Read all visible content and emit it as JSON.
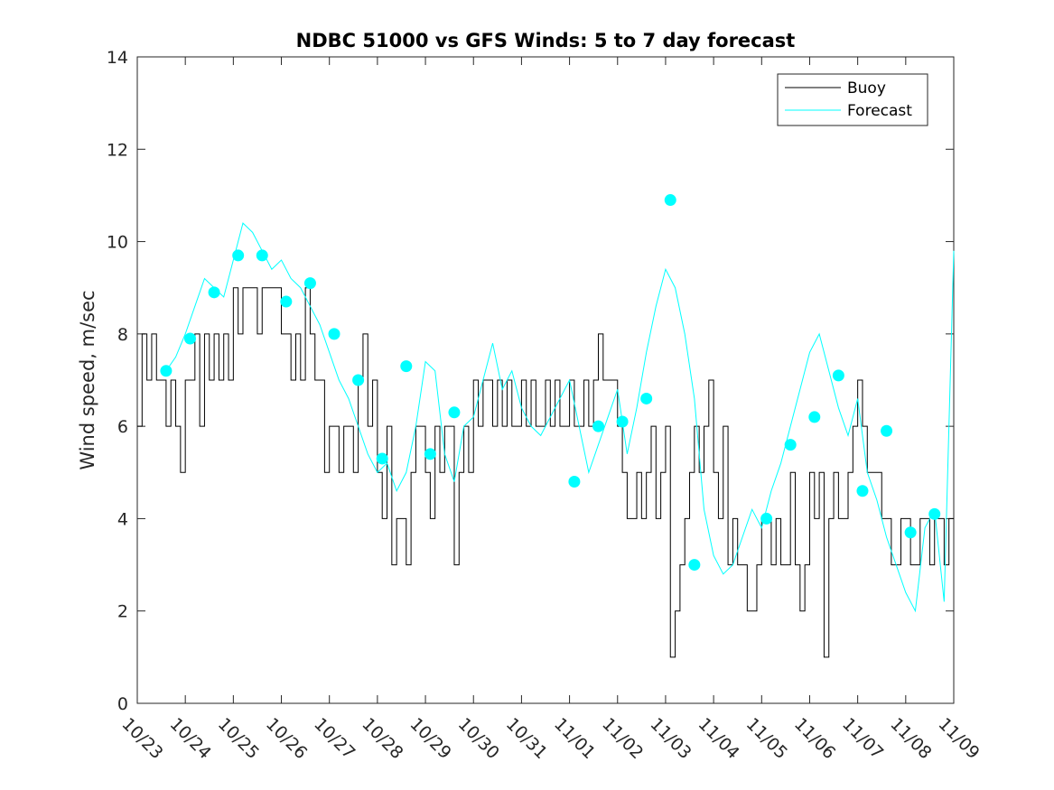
{
  "chart_data": {
    "type": "line",
    "title": "NDBC 51000 vs GFS Winds: 5 to 7 day forecast",
    "xlabel": "",
    "ylabel": "Wind speed, m/sec",
    "x_tick_labels": [
      "10/23",
      "10/24",
      "10/25",
      "10/26",
      "10/27",
      "10/28",
      "10/29",
      "10/30",
      "10/31",
      "11/01",
      "11/02",
      "11/03",
      "11/04",
      "11/05",
      "11/06",
      "11/07",
      "11/08",
      "11/09"
    ],
    "xlim": [
      0,
      17
    ],
    "ylim": [
      0,
      14
    ],
    "y_ticks": [
      0,
      2,
      4,
      6,
      8,
      10,
      12,
      14
    ],
    "legend": {
      "position": "top-right",
      "entries": [
        {
          "label": "Buoy",
          "color": "#000000"
        },
        {
          "label": "Forecast",
          "color": "#00ffff"
        }
      ]
    },
    "colors": {
      "buoy": "#000000",
      "forecast": "#00ffff",
      "axis": "#262626"
    },
    "series": [
      {
        "name": "Buoy",
        "color": "#000000",
        "x": [
          0,
          0.1,
          0.2,
          0.3,
          0.4,
          0.5,
          0.6,
          0.7,
          0.8,
          0.9,
          1.0,
          1.1,
          1.2,
          1.3,
          1.4,
          1.5,
          1.6,
          1.7,
          1.8,
          1.9,
          2.0,
          2.1,
          2.2,
          2.3,
          2.4,
          2.5,
          2.6,
          2.7,
          2.8,
          2.9,
          3.0,
          3.1,
          3.2,
          3.3,
          3.4,
          3.5,
          3.6,
          3.7,
          3.8,
          3.9,
          4.0,
          4.1,
          4.2,
          4.3,
          4.4,
          4.5,
          4.6,
          4.7,
          4.8,
          4.9,
          5.0,
          5.1,
          5.2,
          5.3,
          5.4,
          5.5,
          5.6,
          5.7,
          5.8,
          5.9,
          6.0,
          6.1,
          6.2,
          6.3,
          6.4,
          6.5,
          6.6,
          6.7,
          6.8,
          6.9,
          7.0,
          7.1,
          7.2,
          7.3,
          7.4,
          7.5,
          7.6,
          7.7,
          7.8,
          7.9,
          8.0,
          8.1,
          8.2,
          8.3,
          8.4,
          8.5,
          8.6,
          8.7,
          8.8,
          8.9,
          9.0,
          9.1,
          9.2,
          9.3,
          9.4,
          9.5,
          9.6,
          9.7,
          9.8,
          9.9,
          10.0,
          10.1,
          10.2,
          10.3,
          10.4,
          10.5,
          10.6,
          10.7,
          10.8,
          10.9,
          11.0,
          11.1,
          11.2,
          11.3,
          11.4,
          11.5,
          11.6,
          11.7,
          11.8,
          11.9,
          12.0,
          12.1,
          12.2,
          12.3,
          12.4,
          12.5,
          12.6,
          12.7,
          12.8,
          12.9,
          13.0,
          13.1,
          13.2,
          13.3,
          13.4,
          13.5,
          13.6,
          13.7,
          13.8,
          13.9,
          14.0,
          14.1,
          14.2,
          14.3,
          14.4,
          14.5,
          14.6,
          14.7,
          14.8,
          14.9,
          15.0,
          15.1,
          15.2,
          15.3,
          15.4,
          15.5,
          15.6,
          15.7,
          15.8,
          15.9,
          16.0,
          16.1,
          16.2,
          16.3,
          16.4,
          16.5,
          16.6,
          16.7,
          16.8,
          16.9,
          17.0
        ],
        "values": [
          6,
          8,
          7,
          8,
          7,
          7,
          6,
          7,
          6,
          5,
          7,
          7,
          8,
          6,
          8,
          7,
          8,
          7,
          8,
          7,
          9,
          8,
          9,
          9,
          9,
          8,
          9,
          9,
          9,
          9,
          8,
          8,
          7,
          8,
          7,
          9,
          8,
          7,
          7,
          5,
          6,
          6,
          5,
          6,
          6,
          5,
          7,
          8,
          6,
          7,
          5,
          4,
          6,
          3,
          4,
          4,
          3,
          5,
          6,
          6,
          5,
          4,
          6,
          5,
          6,
          6,
          3,
          5,
          6,
          5,
          7,
          6,
          7,
          7,
          6,
          7,
          6,
          7,
          6,
          6,
          7,
          6,
          7,
          6,
          6,
          7,
          6,
          7,
          6,
          6,
          7,
          6,
          6,
          7,
          6,
          7,
          8,
          7,
          7,
          7,
          6,
          5,
          4,
          4,
          5,
          4,
          5,
          6,
          4,
          5,
          6,
          1,
          2,
          3,
          4,
          5,
          6,
          5,
          6,
          7,
          5,
          4,
          6,
          3,
          4,
          3,
          3,
          2,
          2,
          3,
          4,
          4,
          3,
          4,
          3,
          3,
          5,
          3,
          2,
          3,
          5,
          4,
          5,
          1,
          4,
          5,
          4,
          4,
          5,
          6,
          7,
          6,
          5,
          5,
          5,
          4,
          4,
          3,
          3,
          4,
          4,
          3,
          3,
          4,
          4,
          3,
          4,
          4,
          3,
          4,
          4
        ]
      },
      {
        "name": "Forecast",
        "color": "#00ffff",
        "x": [
          0.6,
          0.8,
          1.0,
          1.2,
          1.4,
          1.6,
          1.8,
          2.0,
          2.2,
          2.4,
          2.6,
          2.8,
          3.0,
          3.2,
          3.4,
          3.6,
          3.8,
          4.0,
          4.2,
          4.4,
          4.6,
          4.8,
          5.0,
          5.2,
          5.4,
          5.6,
          5.8,
          6.0,
          6.2,
          6.4,
          6.6,
          6.8,
          7.0,
          7.2,
          7.4,
          7.6,
          7.8,
          8.0,
          8.2,
          8.4,
          8.6,
          8.8,
          9.0,
          9.2,
          9.4,
          9.6,
          9.8,
          10.0,
          10.2,
          10.4,
          10.6,
          10.8,
          11.0,
          11.2,
          11.4,
          11.6,
          11.8,
          12.0,
          12.2,
          12.4,
          12.6,
          12.8,
          13.0,
          13.2,
          13.4,
          13.6,
          13.8,
          14.0,
          14.2,
          14.4,
          14.6,
          14.8,
          15.0,
          15.2,
          15.4,
          15.6,
          15.8,
          16.0,
          16.2,
          16.4,
          16.6,
          16.8,
          17.0
        ],
        "values": [
          7.2,
          7.5,
          8.0,
          8.6,
          9.2,
          9.0,
          8.8,
          9.6,
          10.4,
          10.2,
          9.8,
          9.4,
          9.6,
          9.2,
          9.0,
          8.6,
          8.2,
          7.6,
          7.0,
          6.6,
          6.0,
          5.4,
          5.0,
          5.2,
          4.6,
          5.0,
          6.0,
          7.4,
          7.2,
          5.4,
          4.8,
          6.0,
          6.2,
          7.0,
          7.8,
          6.8,
          7.2,
          6.4,
          6.0,
          5.8,
          6.2,
          6.6,
          7.0,
          6.0,
          5.0,
          5.6,
          6.2,
          6.8,
          5.4,
          6.4,
          7.6,
          8.6,
          9.4,
          9.0,
          8.0,
          6.6,
          4.2,
          3.2,
          2.8,
          3.0,
          3.6,
          4.2,
          3.8,
          4.6,
          5.2,
          6.0,
          6.8,
          7.6,
          8.0,
          7.2,
          6.4,
          5.8,
          6.6,
          5.0,
          4.4,
          3.6,
          3.0,
          2.4,
          2.0,
          3.8,
          4.2,
          2.2,
          9.8
        ]
      },
      {
        "name": "Forecast points",
        "color": "#00ffff",
        "x": [
          0.6,
          1.1,
          1.6,
          2.1,
          2.6,
          3.1,
          3.6,
          4.1,
          4.6,
          5.1,
          5.6,
          6.1,
          6.6,
          7.1,
          7.6,
          8.1,
          8.6,
          9.1,
          9.6,
          10.1,
          10.6,
          11.1,
          11.6,
          12.1,
          12.6,
          13.1,
          13.6,
          14.1,
          14.6,
          15.1,
          15.6,
          16.1,
          16.6
        ],
        "values": [
          7.2,
          7.9,
          8.9,
          9.7,
          9.7,
          8.7,
          9.1,
          8.0,
          7.0,
          5.3,
          7.3,
          5.4,
          6.3,
          null,
          null,
          null,
          null,
          4.8,
          6.0,
          6.1,
          6.6,
          10.9,
          3.0,
          null,
          null,
          4.0,
          5.6,
          6.2,
          7.1,
          4.6,
          5.9,
          3.7,
          4.1
        ]
      }
    ]
  }
}
